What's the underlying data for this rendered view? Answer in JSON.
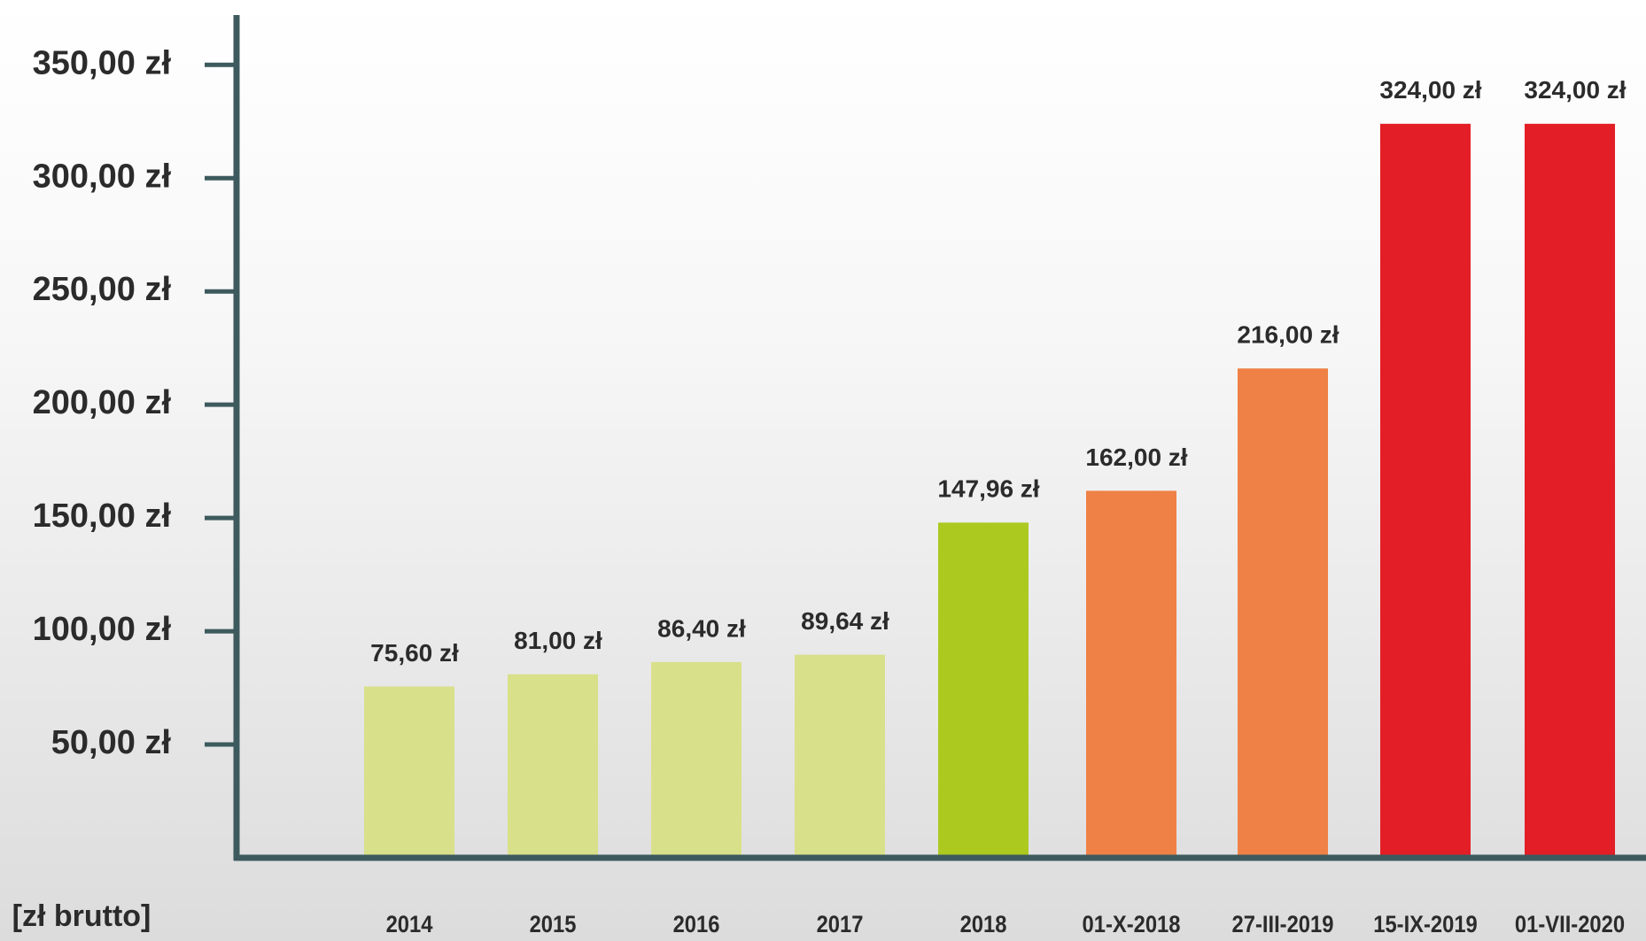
{
  "chart_data": {
    "type": "bar",
    "y_axis_label": "[zł brutto]",
    "categories": [
      "2014",
      "2015",
      "2016",
      "2017",
      "2018",
      "01-X-2018",
      "27-III-2019",
      "15-IX-2019",
      "01-VII-2020"
    ],
    "values": [
      75.6,
      81,
      86.4,
      89.64,
      147.96,
      162,
      216,
      324,
      324
    ],
    "value_labels": [
      "75,60 zł",
      "81,00 zł",
      "86,40 zł",
      "89,64 zł",
      "147,96 zł",
      "162,00 zł",
      "216,00 zł",
      "324,00 zł",
      "324,00 zł"
    ],
    "colors": [
      "#d9e08a",
      "#d9e08a",
      "#d9e08a",
      "#d9e08a",
      "#acc920",
      "#ef8146",
      "#ef8146",
      "#e31e26",
      "#e31e26"
    ],
    "ylim": [
      0,
      372
    ],
    "yticks": [
      {
        "value": 50,
        "label": "50,00 zł"
      },
      {
        "value": 100,
        "label": "100,00 zł"
      },
      {
        "value": 150,
        "label": "150,00 zł"
      },
      {
        "value": 200,
        "label": "200,00 zł"
      },
      {
        "value": 250,
        "label": "250,00 zł"
      },
      {
        "value": 300,
        "label": "300,00 zł"
      },
      {
        "value": 350,
        "label": "350,00 zł"
      }
    ],
    "axis_color": "#3d5a5e"
  }
}
